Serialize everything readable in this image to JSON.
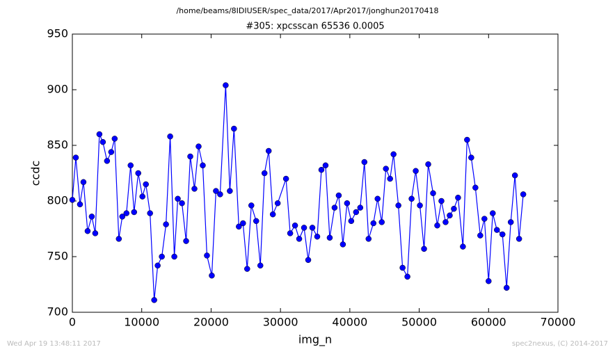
{
  "chart_data": {
    "type": "line",
    "suptitle": "/home/beams/8IDIUSER/spec_data/2017/Apr2017/jonghun20170418",
    "title": "#305: xpcsscan 65536 0.0005",
    "xlabel": "img_n",
    "ylabel": "ccdc",
    "footer_left": "Wed Apr 19 13:48:11 2017",
    "footer_right": "spec2nexus, (C) 2014-2017",
    "color": "#0000ff",
    "xlim": [
      0,
      70000
    ],
    "xticks": [
      0,
      10000,
      20000,
      30000,
      40000,
      50000,
      60000,
      70000
    ],
    "ylim": [
      700,
      950
    ],
    "yticks": [
      700,
      750,
      800,
      850,
      900,
      950
    ],
    "x": [
      0,
      500,
      1100,
      1600,
      2200,
      2800,
      3300,
      3900,
      4400,
      5000,
      5600,
      6100,
      6700,
      7200,
      7800,
      8400,
      8900,
      9500,
      10100,
      10600,
      11200,
      11800,
      12300,
      12900,
      13500,
      14100,
      14700,
      15200,
      15800,
      16400,
      17000,
      17600,
      18200,
      18800,
      19400,
      20100,
      20700,
      21300,
      22100,
      22700,
      23300,
      24000,
      24600,
      25200,
      25800,
      26500,
      27100,
      27700,
      28300,
      28900,
      29600,
      30800,
      31400,
      32100,
      32700,
      33400,
      34000,
      34600,
      35300,
      35900,
      36500,
      37100,
      37800,
      38400,
      39000,
      39600,
      40200,
      40900,
      41500,
      42100,
      42700,
      43400,
      44000,
      44600,
      45200,
      45800,
      46300,
      47000,
      47600,
      48300,
      48900,
      49500,
      50100,
      50700,
      51300,
      52000,
      52600,
      53200,
      53800,
      54400,
      55000,
      55600,
      56300,
      56900,
      57500,
      58100,
      58800,
      59400,
      60000,
      60600,
      61200,
      62000,
      62600,
      63200,
      63800,
      64400,
      65000
    ],
    "values": [
      801,
      839,
      797,
      817,
      773,
      786,
      771,
      860,
      853,
      836,
      844,
      856,
      766,
      786,
      789,
      832,
      790,
      825,
      804,
      815,
      789,
      711,
      742,
      750,
      779,
      858,
      750,
      802,
      798,
      764,
      840,
      811,
      849,
      832,
      751,
      733,
      809,
      806,
      904,
      809,
      865,
      777,
      780,
      739,
      796,
      782,
      742,
      825,
      845,
      788,
      798,
      820,
      771,
      778,
      766,
      776,
      747,
      776,
      768,
      828,
      832,
      767,
      794,
      805,
      761,
      798,
      782,
      790,
      794,
      835,
      766,
      780,
      802,
      781,
      829,
      820,
      842,
      796,
      740,
      732,
      802,
      827,
      796,
      757,
      833,
      807,
      778,
      800,
      781,
      787,
      793,
      803,
      759,
      855,
      839,
      812,
      769,
      784,
      728,
      789,
      774,
      770,
      722,
      781,
      823,
      766,
      806
    ]
  }
}
